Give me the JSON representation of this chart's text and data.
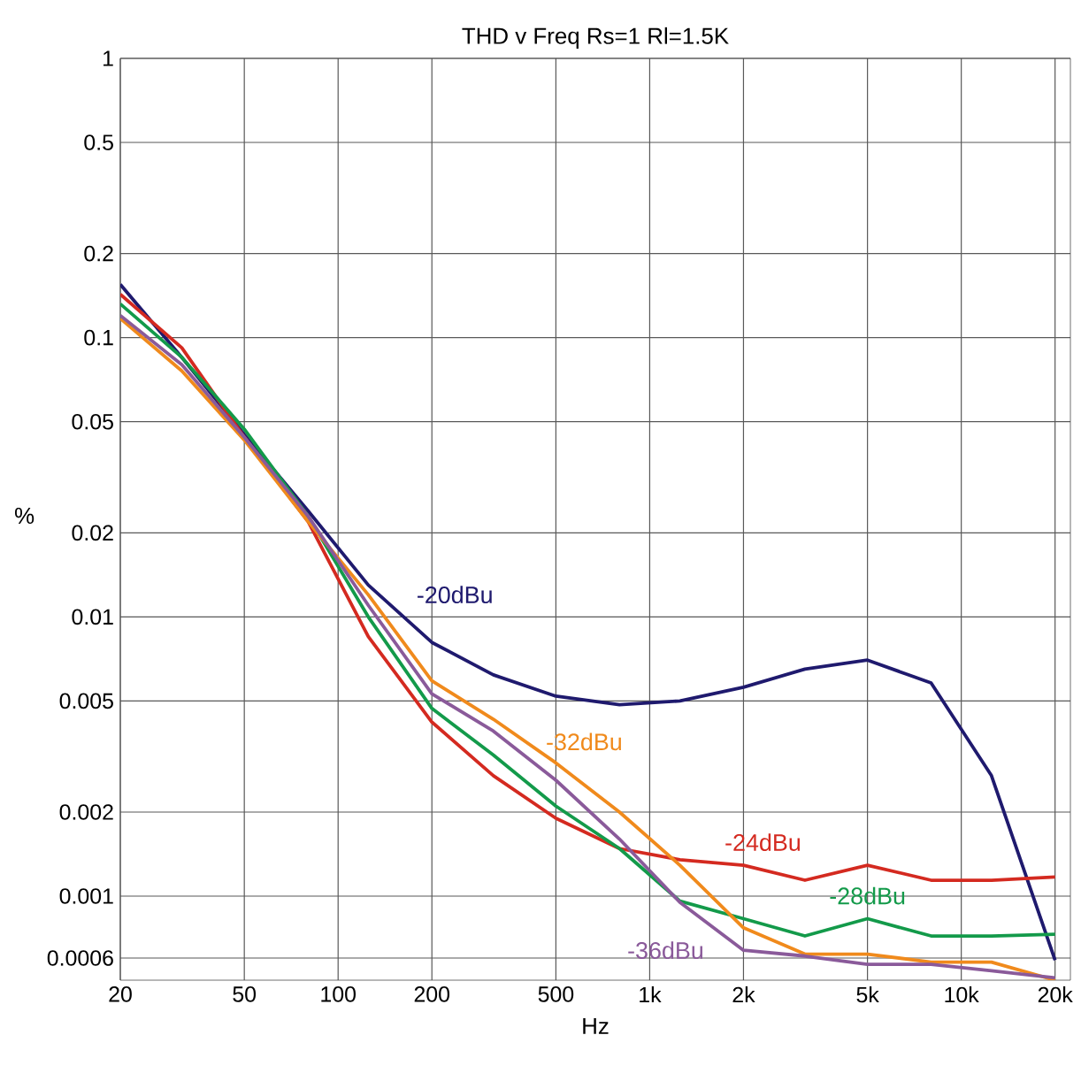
{
  "chart_data": {
    "type": "line",
    "title": "THD v Freq  Rs=1  Rl=1.5K",
    "xlabel": "Hz",
    "ylabel": "%",
    "log": "xy",
    "grid": true,
    "marker": "none",
    "line_style": "solid",
    "xlim": [
      20,
      22400
    ],
    "ylim": [
      0.0005,
      1
    ],
    "xticks": [
      20,
      50,
      100,
      200,
      500,
      {
        "value": 1000,
        "label": "1k"
      },
      {
        "value": 2000,
        "label": "2k"
      },
      {
        "value": 5000,
        "label": "5k"
      },
      {
        "value": 10000,
        "label": "10k"
      },
      {
        "value": 20000,
        "label": "20k"
      }
    ],
    "yticks": [
      1,
      0.5,
      0.2,
      0.1,
      0.05,
      0.02,
      0.01,
      0.005,
      0.002,
      0.001,
      0.0006
    ],
    "x": [
      20,
      31.5,
      50,
      80,
      125,
      200,
      315,
      500,
      800,
      1250,
      2000,
      3150,
      5000,
      8000,
      12500,
      20000
    ],
    "series": [
      {
        "name": "-20dBu",
        "color": "#1f1a6e",
        "values": [
          0.155,
          0.085,
          0.045,
          0.024,
          0.013,
          0.0081,
          0.0062,
          0.0052,
          0.00485,
          0.005,
          0.0056,
          0.0065,
          0.007,
          0.0058,
          0.0027,
          0.00059
        ]
      },
      {
        "name": "-24dBu",
        "color": "#d42a20",
        "values": [
          0.143,
          0.092,
          0.044,
          0.022,
          0.0085,
          0.0042,
          0.0027,
          0.0019,
          0.00148,
          0.00135,
          0.00129,
          0.00114,
          0.00129,
          0.00114,
          0.00114,
          0.00117
        ]
      },
      {
        "name": "-28dBu",
        "color": "#139a4a",
        "values": [
          0.132,
          0.085,
          0.047,
          0.023,
          0.01,
          0.0047,
          0.0032,
          0.0021,
          0.00148,
          0.00096,
          0.00083,
          0.00072,
          0.00083,
          0.00072,
          0.00072,
          0.00073
        ]
      },
      {
        "name": "-32dBu",
        "color": "#f08a1c",
        "values": [
          0.117,
          0.076,
          0.043,
          0.022,
          0.012,
          0.0059,
          0.0043,
          0.003,
          0.002,
          0.00129,
          0.00077,
          0.00062,
          0.00062,
          0.00058,
          0.00058,
          0.0005
        ]
      },
      {
        "name": "-36dBu",
        "color": "#8a5a9a",
        "values": [
          0.12,
          0.08,
          0.044,
          0.023,
          0.011,
          0.0053,
          0.0039,
          0.0026,
          0.0016,
          0.00095,
          0.00064,
          0.00061,
          0.00057,
          0.00057,
          0.00054,
          0.00051
        ]
      }
    ]
  }
}
